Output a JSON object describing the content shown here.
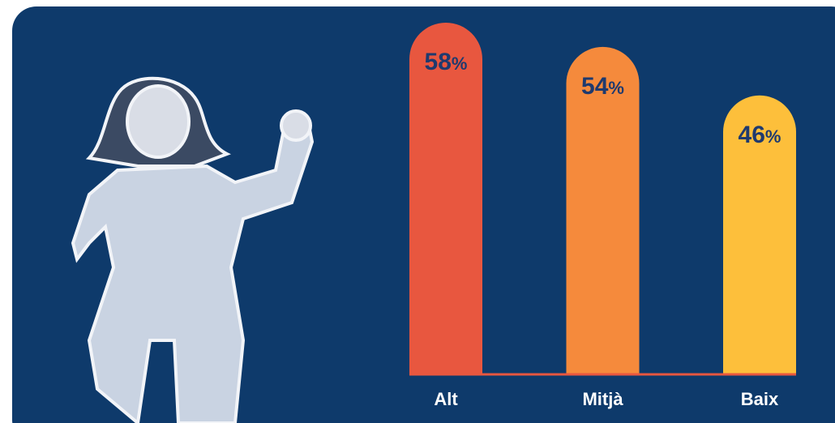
{
  "chart_data": {
    "type": "bar",
    "categories": [
      "Alt",
      "Mitjà",
      "Baix"
    ],
    "values": [
      58,
      54,
      46
    ],
    "value_labels": [
      "58%",
      "54%",
      "46%"
    ],
    "colors": [
      "#e8573f",
      "#f58a3c",
      "#fdbf3b"
    ]
  }
}
